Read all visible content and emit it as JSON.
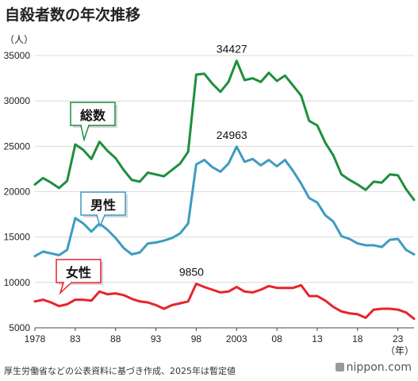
{
  "title": "自殺者数の年次推移",
  "source": "厚生労働省などの公表資料に基づき作成、2025年は暫定値",
  "logo": "nippon.com",
  "chart_data": {
    "type": "line",
    "title": "自殺者数の年次推移",
    "y_unit": "（人）",
    "x_unit": "（年）",
    "ylim": [
      5000,
      35000
    ],
    "yticks": [
      5000,
      10000,
      15000,
      20000,
      25000,
      30000,
      35000
    ],
    "xlim": [
      1978,
      2025
    ],
    "xticks": [
      {
        "value": 1978,
        "label": "1978"
      },
      {
        "value": 1983,
        "label": "83"
      },
      {
        "value": 1988,
        "label": "88"
      },
      {
        "value": 1993,
        "label": "93"
      },
      {
        "value": 1998,
        "label": "98"
      },
      {
        "value": 2003,
        "label": "2003"
      },
      {
        "value": 2008,
        "label": "08"
      },
      {
        "value": 2013,
        "label": "13"
      },
      {
        "value": 2018,
        "label": "18"
      },
      {
        "value": 2023,
        "label": "23"
      }
    ],
    "grid": true,
    "x": [
      1978,
      1979,
      1980,
      1981,
      1982,
      1983,
      1984,
      1985,
      1986,
      1987,
      1988,
      1989,
      1990,
      1991,
      1992,
      1993,
      1994,
      1995,
      1996,
      1997,
      1998,
      1999,
      2000,
      2001,
      2002,
      2003,
      2004,
      2005,
      2006,
      2007,
      2008,
      2009,
      2010,
      2011,
      2012,
      2013,
      2014,
      2015,
      2016,
      2017,
      2018,
      2019,
      2020,
      2021,
      2022,
      2023,
      2024,
      2025
    ],
    "series": [
      {
        "name": "総数",
        "color": "#1e8f3c",
        "values": [
          20800,
          21500,
          21000,
          20400,
          21200,
          25200,
          24600,
          23600,
          25500,
          24500,
          23700,
          22400,
          21300,
          21100,
          22100,
          21900,
          21700,
          22400,
          23100,
          24400,
          32900,
          33000,
          31900,
          31000,
          32100,
          34427,
          32300,
          32500,
          32100,
          33100,
          32200,
          32800,
          31700,
          30600,
          27800,
          27300,
          25400,
          24000,
          21900,
          21300,
          20800,
          20200,
          21100,
          21000,
          21900,
          21800,
          20300,
          19100
        ]
      },
      {
        "name": "男性",
        "color": "#3d9bc1",
        "values": [
          12900,
          13400,
          13200,
          13000,
          13600,
          17100,
          16500,
          15600,
          16500,
          15800,
          14900,
          13800,
          13100,
          13300,
          14300,
          14400,
          14600,
          14900,
          15400,
          16500,
          23000,
          23500,
          22700,
          22200,
          23100,
          24963,
          23300,
          23600,
          22900,
          23500,
          22800,
          23500,
          22300,
          20900,
          19300,
          18800,
          17400,
          16700,
          15100,
          14800,
          14300,
          14100,
          14100,
          13900,
          14700,
          14800,
          13600,
          13100
        ]
      },
      {
        "name": "女性",
        "color": "#e8242c",
        "values": [
          7900,
          8100,
          7800,
          7400,
          7600,
          8100,
          8100,
          8000,
          9000,
          8700,
          8800,
          8600,
          8200,
          7900,
          7800,
          7500,
          7100,
          7500,
          7700,
          7900,
          9850,
          9500,
          9200,
          8900,
          9000,
          9500,
          9000,
          8900,
          9200,
          9600,
          9400,
          9400,
          9400,
          9700,
          8500,
          8500,
          8000,
          7300,
          6800,
          6600,
          6500,
          6100,
          7000,
          7100,
          7100,
          7000,
          6700,
          6000
        ]
      }
    ],
    "annotations": [
      {
        "text": "34427",
        "series": 0,
        "x": 2003
      },
      {
        "text": "24963",
        "series": 1,
        "x": 2003
      },
      {
        "text": "9850",
        "series": 2,
        "x": 1998
      }
    ]
  }
}
